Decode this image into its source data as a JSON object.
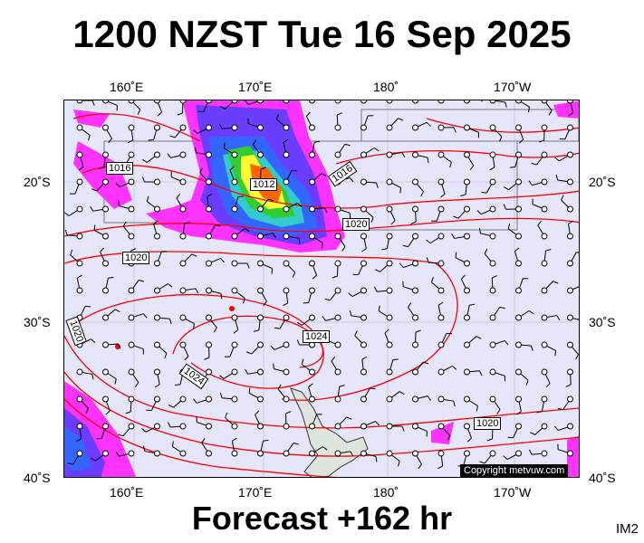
{
  "header": {
    "title": "1200 NZST Tue 16 Sep 2025"
  },
  "footer": {
    "forecast": "Forecast +162 hr",
    "code": "IM2"
  },
  "map": {
    "top_lon_labels": [
      "160˚E",
      "170˚E",
      "180˚",
      "170˚W"
    ],
    "bottom_lon_labels": [
      "160˚E",
      "170˚E",
      "180˚",
      "170˚W"
    ],
    "left_lat_labels": [
      "20˚S",
      "30˚S",
      "40˚S"
    ],
    "right_lat_labels": [
      "20˚S",
      "30˚S",
      "40˚S"
    ],
    "isobar_labels": [
      "1016",
      "1016",
      "1012",
      "1020",
      "1020",
      "1024",
      "1024",
      "1020",
      "1020"
    ],
    "copyright": "Copyright metvuw.com"
  },
  "colors": {
    "background": "#e6e6fb",
    "isobar": "#ff0000",
    "precip_light": "#ff33ff",
    "precip_mid": "#6a3dff",
    "precip_blue": "#3366ff",
    "precip_cyan": "#33cccc",
    "precip_green": "#33cc33",
    "precip_yellow": "#ffff33",
    "precip_orange": "#ff6600",
    "land": "#dde6dd"
  }
}
